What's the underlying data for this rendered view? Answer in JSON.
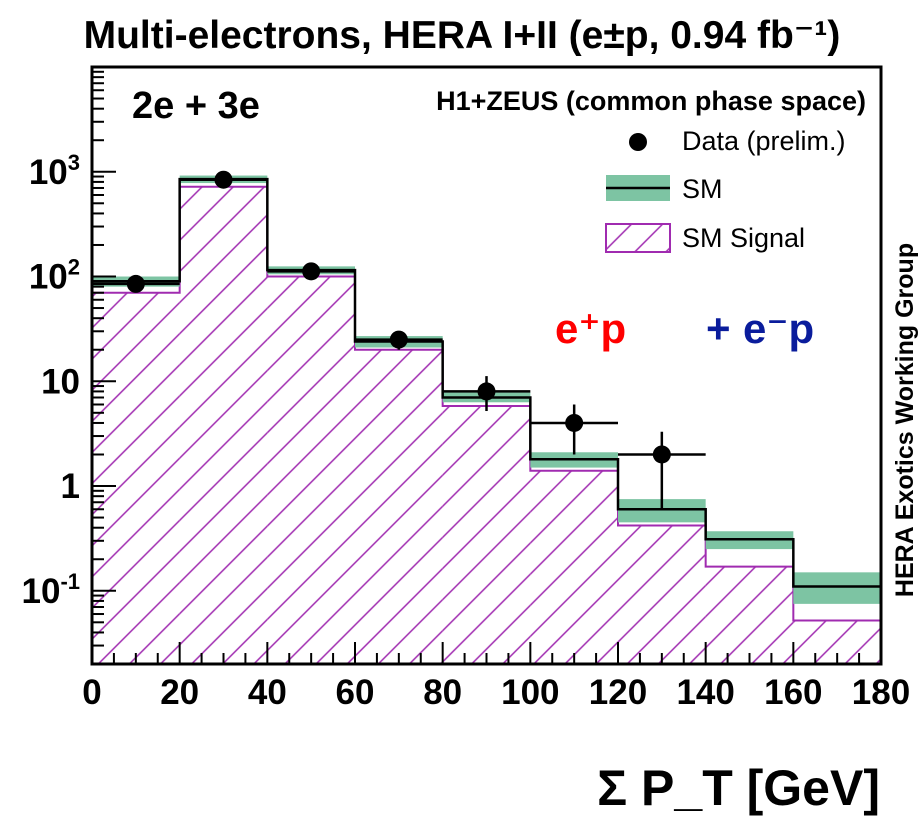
{
  "chart_data": {
    "type": "bar",
    "title": "Multi-electrons, HERA I+II (e±p, 0.94 fb⁻¹)",
    "xlabel": "Σ P_T [GeV]",
    "ylabel": "",
    "xlim": [
      0,
      180
    ],
    "ylim": [
      0.02,
      10000
    ],
    "ylog": true,
    "x_ticks": [
      0,
      20,
      40,
      60,
      80,
      100,
      120,
      140,
      160,
      180
    ],
    "y_ticks": [
      {
        "value": 0.1,
        "label": "10^-1"
      },
      {
        "value": 1,
        "label": "1"
      },
      {
        "value": 10,
        "label": "10"
      },
      {
        "value": 100,
        "label": "10^2"
      },
      {
        "value": 1000,
        "label": "10^3"
      }
    ],
    "bin_edges": [
      0,
      20,
      40,
      60,
      80,
      100,
      120,
      140,
      160,
      180
    ],
    "series": [
      {
        "name": "SM",
        "values": [
          90,
          850,
          115,
          24,
          7,
          1.8,
          0.6,
          0.31,
          0.11
        ],
        "band_low": [
          80,
          780,
          105,
          21,
          6.3,
          1.5,
          0.45,
          0.25,
          0.075
        ],
        "band_high": [
          100,
          920,
          125,
          27,
          7.8,
          2.1,
          0.75,
          0.37,
          0.15
        ]
      },
      {
        "name": "SM Signal",
        "values": [
          70,
          720,
          100,
          20,
          5.8,
          1.4,
          0.42,
          0.17,
          0.052
        ]
      },
      {
        "name": "Data (prelim.)",
        "points": [
          {
            "x": 10,
            "y": 85,
            "ylo": 76,
            "yhi": 94
          },
          {
            "x": 30,
            "y": 840,
            "ylo": 810,
            "yhi": 870
          },
          {
            "x": 50,
            "y": 112,
            "ylo": 102,
            "yhi": 123
          },
          {
            "x": 70,
            "y": 25,
            "ylo": 20,
            "yhi": 30
          },
          {
            "x": 90,
            "y": 8,
            "ylo": 5.2,
            "yhi": 11.2
          },
          {
            "x": 110,
            "y": 4,
            "ylo": 2,
            "yhi": 6
          },
          {
            "x": 130,
            "y": 2,
            "ylo": 0.6,
            "yhi": 3.3
          }
        ]
      }
    ],
    "label_channel": "2e + 3e",
    "label_experiment": "H1+ZEUS (common phase space)",
    "label_beam_plus": "e⁺p",
    "label_plus_sign": "+",
    "label_beam_minus": "e⁻p",
    "label_group": "HERA Exotics Working Group",
    "legend_position": "top-right",
    "colors": {
      "band": "#7dc4a3",
      "signal": "#a02bb0",
      "data": "#000000",
      "beam_plus": "#ff0000",
      "beam_minus": "#0a1c9c"
    }
  }
}
